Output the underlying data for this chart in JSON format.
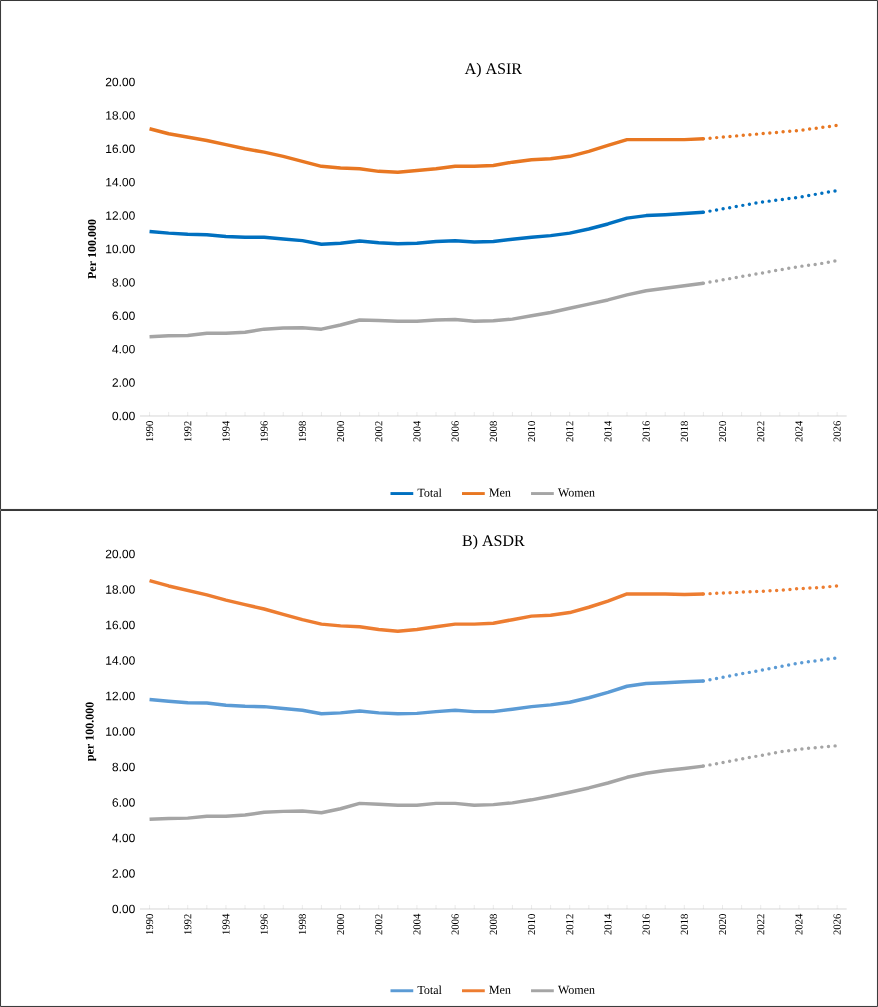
{
  "chart_data": [
    {
      "type": "line",
      "title": "A) ASIR",
      "ylabel": "Per 100.000",
      "categories": [
        "1990",
        null,
        "1992",
        null,
        "1994",
        null,
        "1996",
        null,
        "1998",
        null,
        "2000",
        null,
        "2002",
        null,
        "2004",
        null,
        "2006",
        null,
        "2008",
        null,
        "2010",
        null,
        "2012",
        null,
        "2014",
        null,
        "2016",
        null,
        "2018",
        null,
        "2020",
        null,
        "2022",
        null,
        "2024",
        null,
        "2026"
      ],
      "ylim": [
        0,
        20
      ],
      "yticks": [
        {
          "value": 0,
          "label": "0.00"
        },
        {
          "value": 2,
          "label": "2.00"
        },
        {
          "value": 4,
          "label": "4.00"
        },
        {
          "value": 6,
          "label": "6.00"
        },
        {
          "value": 8,
          "label": "8.00"
        },
        {
          "value": 10,
          "label": "10.00"
        },
        {
          "value": 12,
          "label": "12.00"
        },
        {
          "value": 14,
          "label": "14.00"
        },
        {
          "value": 16,
          "label": "16.00"
        },
        {
          "value": 18,
          "label": "18.00"
        },
        {
          "value": 20,
          "label": "20.00"
        }
      ],
      "legend": "bottom",
      "grid": false,
      "marker": "none",
      "series": [
        {
          "name": "Total",
          "color": "#0070c0",
          "line_style": "solid",
          "values": [
            11.05,
            10.95,
            10.88,
            10.85,
            10.75,
            10.7,
            10.7,
            10.6,
            10.5,
            10.28,
            10.35,
            10.48,
            10.38,
            10.32,
            10.35,
            10.45,
            10.5,
            10.42,
            10.45,
            10.58,
            10.7,
            10.8,
            10.95,
            11.2,
            11.5,
            11.85,
            12.0,
            12.05,
            12.12,
            12.2,
            null,
            null,
            null,
            null,
            null,
            null,
            null
          ]
        },
        {
          "name": "Men",
          "color": "#e87722",
          "line_style": "solid",
          "values": [
            17.2,
            16.9,
            16.7,
            16.5,
            16.25,
            16.0,
            15.8,
            15.55,
            15.25,
            14.95,
            14.85,
            14.8,
            14.65,
            14.6,
            14.7,
            14.8,
            14.95,
            14.95,
            15.0,
            15.2,
            15.35,
            15.4,
            15.55,
            15.85,
            16.2,
            16.55,
            16.55,
            16.55,
            16.55,
            16.6,
            null,
            null,
            null,
            null,
            null,
            null,
            null
          ]
        },
        {
          "name": "Women",
          "color": "#a5a5a5",
          "line_style": "solid",
          "values": [
            4.75,
            4.8,
            4.82,
            4.95,
            4.95,
            5.02,
            5.2,
            5.27,
            5.28,
            5.2,
            5.45,
            5.75,
            5.72,
            5.68,
            5.67,
            5.75,
            5.78,
            5.67,
            5.7,
            5.8,
            6.0,
            6.2,
            6.45,
            6.7,
            6.95,
            7.25,
            7.5,
            7.65,
            7.8,
            7.95,
            null,
            null,
            null,
            null,
            null,
            null,
            null
          ]
        },
        {
          "color": "#0070c0",
          "line_style": "dotted",
          "values": [
            null,
            null,
            null,
            null,
            null,
            null,
            null,
            null,
            null,
            null,
            null,
            null,
            null,
            null,
            null,
            null,
            null,
            null,
            null,
            null,
            null,
            null,
            null,
            null,
            null,
            null,
            null,
            null,
            null,
            12.2,
            12.4,
            12.6,
            12.8,
            12.95,
            13.1,
            13.3,
            13.5
          ]
        },
        {
          "color": "#e87722",
          "line_style": "dotted",
          "values": [
            null,
            null,
            null,
            null,
            null,
            null,
            null,
            null,
            null,
            null,
            null,
            null,
            null,
            null,
            null,
            null,
            null,
            null,
            null,
            null,
            null,
            null,
            null,
            null,
            null,
            null,
            null,
            null,
            null,
            16.6,
            16.7,
            16.8,
            16.9,
            17.0,
            17.1,
            17.25,
            17.4
          ]
        },
        {
          "color": "#a5a5a5",
          "line_style": "dotted",
          "values": [
            null,
            null,
            null,
            null,
            null,
            null,
            null,
            null,
            null,
            null,
            null,
            null,
            null,
            null,
            null,
            null,
            null,
            null,
            null,
            null,
            null,
            null,
            null,
            null,
            null,
            null,
            null,
            null,
            null,
            7.95,
            8.15,
            8.35,
            8.55,
            8.75,
            8.95,
            9.1,
            9.3
          ]
        }
      ]
    },
    {
      "type": "line",
      "title": "B) ASDR",
      "ylabel": "per 100.000",
      "categories": [
        "1990",
        null,
        "1992",
        null,
        "1994",
        null,
        "1996",
        null,
        "1998",
        null,
        "2000",
        null,
        "2002",
        null,
        "2004",
        null,
        "2006",
        null,
        "2008",
        null,
        "2010",
        null,
        "2012",
        null,
        "2014",
        null,
        "2016",
        null,
        "2018",
        null,
        "2020",
        null,
        "2022",
        null,
        "2024",
        null,
        "2026"
      ],
      "ylim": [
        0,
        20
      ],
      "yticks": [
        {
          "value": 0,
          "label": "0.00"
        },
        {
          "value": 2,
          "label": "2.00"
        },
        {
          "value": 4,
          "label": "4.00"
        },
        {
          "value": 6,
          "label": "6.00"
        },
        {
          "value": 8,
          "label": "8.00"
        },
        {
          "value": 10,
          "label": "10.00"
        },
        {
          "value": 12,
          "label": "12.00"
        },
        {
          "value": 14,
          "label": "14.00"
        },
        {
          "value": 16,
          "label": "16.00"
        },
        {
          "value": 18,
          "label": "18.00"
        },
        {
          "value": 20,
          "label": "20.00"
        }
      ],
      "legend": "bottom",
      "grid": false,
      "marker": "none",
      "series": [
        {
          "name": "Total",
          "color": "#5b9bd5",
          "line_style": "solid",
          "values": [
            11.8,
            11.7,
            11.62,
            11.6,
            11.48,
            11.42,
            11.4,
            11.3,
            11.2,
            11.0,
            11.05,
            11.15,
            11.05,
            11.0,
            11.02,
            11.12,
            11.2,
            11.12,
            11.12,
            11.25,
            11.4,
            11.5,
            11.65,
            11.9,
            12.2,
            12.55,
            12.7,
            12.75,
            12.8,
            12.85,
            null,
            null,
            null,
            null,
            null,
            null,
            null
          ]
        },
        {
          "name": "Men",
          "color": "#ed7d31",
          "line_style": "solid",
          "values": [
            18.5,
            18.2,
            17.95,
            17.7,
            17.4,
            17.15,
            16.9,
            16.6,
            16.3,
            16.05,
            15.95,
            15.9,
            15.75,
            15.65,
            15.75,
            15.9,
            16.05,
            16.05,
            16.1,
            16.3,
            16.5,
            16.55,
            16.7,
            17.0,
            17.35,
            17.75,
            17.75,
            17.75,
            17.72,
            17.75,
            null,
            null,
            null,
            null,
            null,
            null,
            null
          ]
        },
        {
          "name": "Women",
          "color": "#a5a5a5",
          "line_style": "solid",
          "values": [
            5.05,
            5.1,
            5.12,
            5.22,
            5.22,
            5.3,
            5.45,
            5.5,
            5.52,
            5.42,
            5.65,
            5.95,
            5.9,
            5.85,
            5.85,
            5.95,
            5.95,
            5.85,
            5.88,
            5.98,
            6.15,
            6.35,
            6.58,
            6.82,
            7.1,
            7.42,
            7.65,
            7.8,
            7.92,
            8.05,
            null,
            null,
            null,
            null,
            null,
            null,
            null
          ]
        },
        {
          "color": "#5b9bd5",
          "line_style": "dotted",
          "values": [
            null,
            null,
            null,
            null,
            null,
            null,
            null,
            null,
            null,
            null,
            null,
            null,
            null,
            null,
            null,
            null,
            null,
            null,
            null,
            null,
            null,
            null,
            null,
            null,
            null,
            null,
            null,
            null,
            null,
            12.85,
            13.05,
            13.25,
            13.45,
            13.65,
            13.85,
            14.0,
            14.15
          ]
        },
        {
          "color": "#ed7d31",
          "line_style": "dotted",
          "values": [
            null,
            null,
            null,
            null,
            null,
            null,
            null,
            null,
            null,
            null,
            null,
            null,
            null,
            null,
            null,
            null,
            null,
            null,
            null,
            null,
            null,
            null,
            null,
            null,
            null,
            null,
            null,
            null,
            null,
            17.75,
            17.8,
            17.85,
            17.9,
            17.95,
            18.05,
            18.1,
            18.2
          ]
        },
        {
          "color": "#a5a5a5",
          "line_style": "dotted",
          "values": [
            null,
            null,
            null,
            null,
            null,
            null,
            null,
            null,
            null,
            null,
            null,
            null,
            null,
            null,
            null,
            null,
            null,
            null,
            null,
            null,
            null,
            null,
            null,
            null,
            null,
            null,
            null,
            null,
            null,
            8.05,
            8.25,
            8.45,
            8.65,
            8.85,
            9.0,
            9.1,
            9.2
          ]
        }
      ]
    }
  ]
}
